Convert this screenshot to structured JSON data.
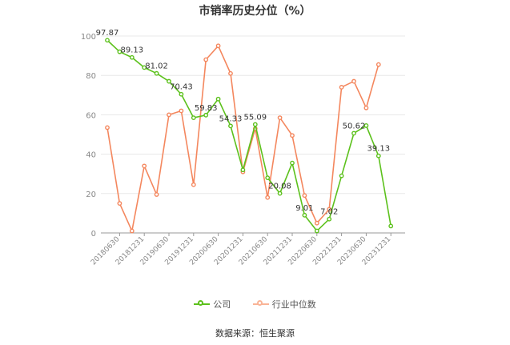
{
  "chart_data": {
    "type": "line",
    "title": "市销率历史分位（%）",
    "ylim": [
      0,
      100
    ],
    "yticks": [
      0,
      20,
      40,
      60,
      80,
      100
    ],
    "grid": true,
    "legend_position": "bottom",
    "x_tick_labels": [
      "20180630",
      "20181231",
      "20190630",
      "20191231",
      "20200630",
      "20201231",
      "20210630",
      "20211231",
      "20220630",
      "20221231",
      "20230630",
      "20231231"
    ],
    "series": [
      {
        "name": "公司",
        "color": "#5cc11c",
        "values": [
          97.87,
          92,
          89.13,
          84,
          81.02,
          77,
          70.43,
          58.5,
          59.83,
          68,
          54.33,
          32,
          55.09,
          28,
          20.08,
          35.5,
          9.01,
          1,
          7.02,
          29,
          50.62,
          54.5,
          39.13,
          3.5
        ],
        "labels": {
          "0": "97.87",
          "2": "89.13",
          "4": "81.02",
          "6": "70.43",
          "8": "59.83",
          "10": "54.33",
          "12": "55.09",
          "14": "20.08",
          "16": "9.01",
          "18": "7.02",
          "20": "50.62",
          "22": "39.13"
        }
      },
      {
        "name": "行业中位数",
        "color": "#f4875e",
        "values": [
          53.5,
          15,
          1,
          34,
          19.5,
          60,
          62,
          24.5,
          88,
          95,
          81,
          31,
          53,
          18,
          58.5,
          49.5,
          19,
          5,
          12,
          74,
          77,
          63.5,
          85.5,
          null
        ]
      }
    ]
  },
  "source": "数据来源：恒生聚源"
}
